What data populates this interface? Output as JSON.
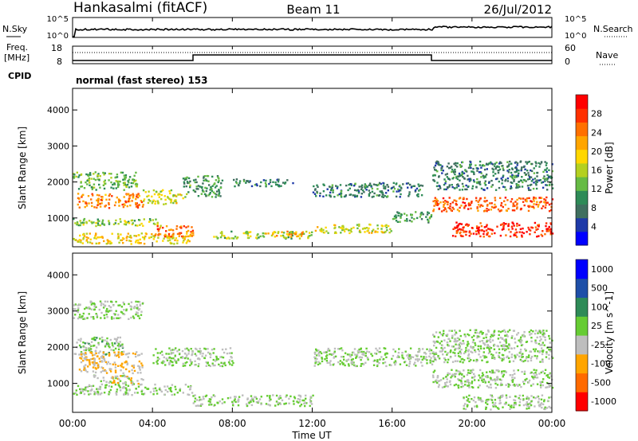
{
  "header": {
    "station": "Hankasalmi (fitACF)",
    "beam": "Beam 11",
    "date": "26/Jul/2012"
  },
  "noise_panel": {
    "left_label": "N.Sky",
    "right_label": "N.Search",
    "left_ticks": [
      "10^5",
      "10^0"
    ],
    "right_ticks": [
      "10^5",
      "10^0"
    ]
  },
  "freq_panel": {
    "left_label_line1": "Freq.",
    "left_label_line2": "[MHz]",
    "left_ticks": [
      "18",
      "8"
    ],
    "right_label": "Nave",
    "right_ticks": [
      "60",
      "0"
    ]
  },
  "cpid": {
    "label": "CPID",
    "text": "normal (fast stereo) 153"
  },
  "x_axis": {
    "label": "Time UT",
    "ticks": [
      "00:00",
      "04:00",
      "08:00",
      "12:00",
      "16:00",
      "20:00",
      "00:00"
    ]
  },
  "colors": {
    "noise_line": "#000000",
    "nave_dots": "#000000",
    "velocity_ground_scatter": "#bebebe"
  },
  "chart_data": [
    {
      "type": "heatmap",
      "name": "power",
      "ylabel": "Slant Range [km]",
      "y_ticks": [
        "1000",
        "2000",
        "3000",
        "4000"
      ],
      "ylim": [
        200,
        4600
      ],
      "xlim_hours": [
        0,
        24
      ],
      "colorbar": {
        "label": "Power [dB]",
        "ticks": [
          "4",
          "8",
          "12",
          "16",
          "20",
          "24",
          "28"
        ],
        "range": [
          0,
          30
        ],
        "colors": [
          "#0000ff",
          "#1e3aa8",
          "#3f6f5f",
          "#2e8b57",
          "#66bb44",
          "#b4d020",
          "#ffd700",
          "#ffa500",
          "#ff7000",
          "#ff3000",
          "#ff0000"
        ]
      },
      "regions": [
        {
          "t0": 0.0,
          "t1": 3.2,
          "r0": 1800,
          "r1": 2300,
          "value": 12
        },
        {
          "t0": 0.2,
          "t1": 3.5,
          "r0": 1300,
          "r1": 1700,
          "value": 22
        },
        {
          "t0": 0.0,
          "t1": 4.5,
          "r0": 800,
          "r1": 1000,
          "value": 14
        },
        {
          "t0": 0.0,
          "t1": 6.0,
          "r0": 300,
          "r1": 600,
          "value": 18
        },
        {
          "t0": 3.5,
          "t1": 5.5,
          "r0": 1400,
          "r1": 1800,
          "value": 16
        },
        {
          "t0": 4.0,
          "t1": 6.0,
          "r0": 500,
          "r1": 800,
          "value": 24
        },
        {
          "t0": 5.5,
          "t1": 7.5,
          "r0": 1600,
          "r1": 2200,
          "value": 10
        },
        {
          "t0": 8.0,
          "t1": 11.0,
          "r0": 1900,
          "r1": 2100,
          "value": 8
        },
        {
          "t0": 7.0,
          "t1": 12.0,
          "r0": 450,
          "r1": 650,
          "value": 14
        },
        {
          "t0": 9.5,
          "t1": 11.5,
          "r0": 500,
          "r1": 650,
          "value": 20
        },
        {
          "t0": 12.0,
          "t1": 16.0,
          "r0": 600,
          "r1": 850,
          "value": 16
        },
        {
          "t0": 12.0,
          "t1": 17.5,
          "r0": 1600,
          "r1": 2000,
          "value": 8
        },
        {
          "t0": 16.0,
          "t1": 18.0,
          "r0": 900,
          "r1": 1200,
          "value": 10
        },
        {
          "t0": 18.0,
          "t1": 24.0,
          "r0": 1800,
          "r1": 2600,
          "value": 8
        },
        {
          "t0": 18.0,
          "t1": 24.0,
          "r0": 1200,
          "r1": 1600,
          "value": 24
        },
        {
          "t0": 19.0,
          "t1": 24.0,
          "r0": 500,
          "r1": 900,
          "value": 27
        }
      ]
    },
    {
      "type": "heatmap",
      "name": "velocity",
      "ylabel": "Slant Range [km]",
      "y_ticks": [
        "1000",
        "2000",
        "3000",
        "4000"
      ],
      "ylim": [
        200,
        4600
      ],
      "xlim_hours": [
        0,
        24
      ],
      "colorbar": {
        "label": "Velocity [m s^-1]",
        "ticks": [
          "1000",
          "500",
          "100",
          "25",
          "-25",
          "-100",
          "-500",
          "-1000"
        ],
        "range": [
          -1200,
          1200
        ],
        "colors": [
          "#ff0000",
          "#ff6a00",
          "#ffa500",
          "#bebebe",
          "#66cc33",
          "#2e8b57",
          "#1e4fa8",
          "#0000ff"
        ]
      },
      "regions": [
        {
          "t0": 0.0,
          "t1": 3.5,
          "r0": 2800,
          "r1": 3300,
          "value": 0
        },
        {
          "t0": 0.0,
          "t1": 2.5,
          "r0": 1800,
          "r1": 2300,
          "value": 60
        },
        {
          "t0": 0.3,
          "t1": 3.5,
          "r0": 1300,
          "r1": 1900,
          "value": -300
        },
        {
          "t0": 1.0,
          "t1": 3.5,
          "r0": 1000,
          "r1": 1250,
          "value": -150
        },
        {
          "t0": 0.0,
          "t1": 6.0,
          "r0": 700,
          "r1": 1000,
          "value": 0
        },
        {
          "t0": 4.0,
          "t1": 8.0,
          "r0": 1500,
          "r1": 2000,
          "value": 0
        },
        {
          "t0": 6.0,
          "t1": 12.0,
          "r0": 400,
          "r1": 700,
          "value": 0
        },
        {
          "t0": 12.0,
          "t1": 18.0,
          "r0": 1500,
          "r1": 2000,
          "value": 0
        },
        {
          "t0": 18.0,
          "t1": 24.0,
          "r0": 1600,
          "r1": 2500,
          "value": 0
        },
        {
          "t0": 18.0,
          "t1": 24.0,
          "r0": 900,
          "r1": 1400,
          "value": 0
        },
        {
          "t0": 19.5,
          "t1": 24.0,
          "r0": 300,
          "r1": 700,
          "value": 0
        }
      ]
    }
  ]
}
